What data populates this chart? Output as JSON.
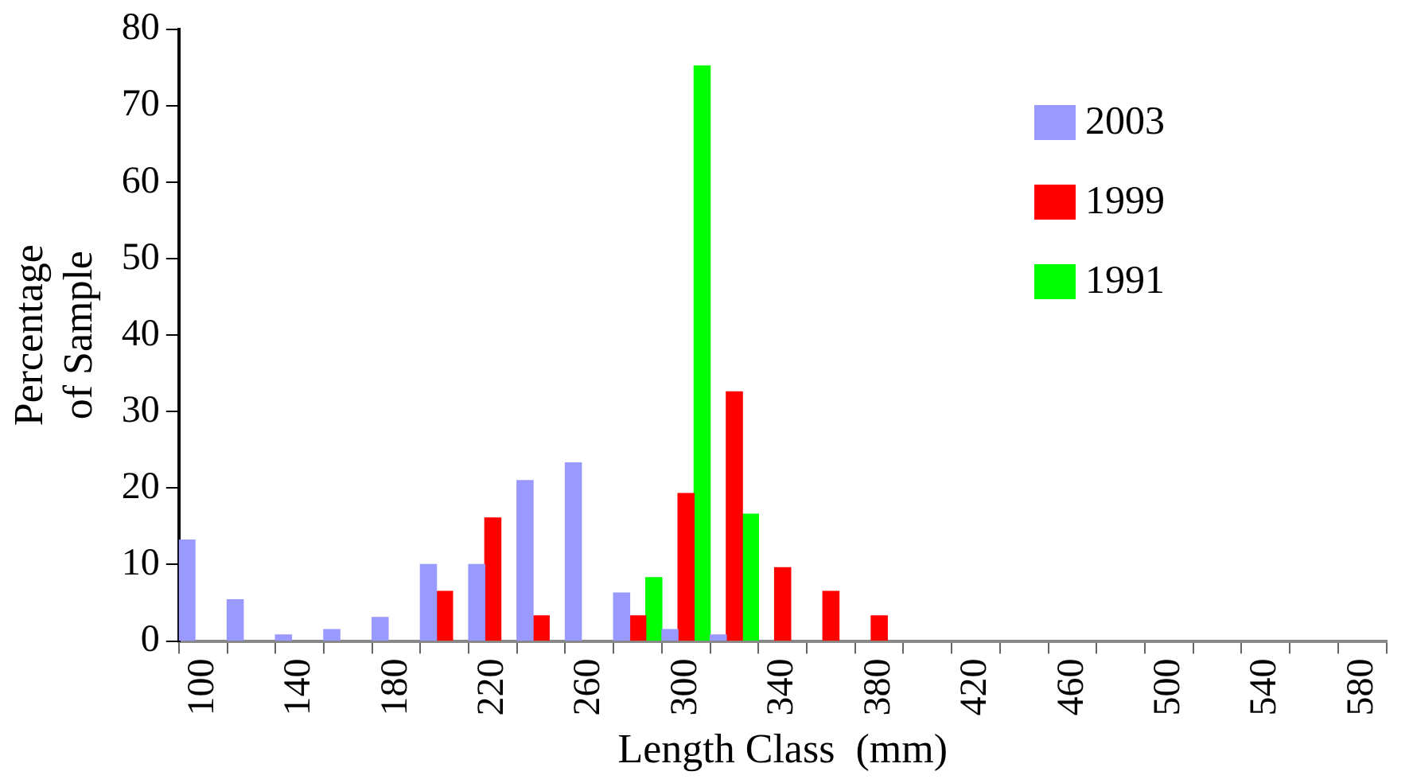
{
  "chart_data": {
    "type": "bar",
    "xlabel": "Length Class  (mm)",
    "ylabel": [
      "Percentage",
      "of Sample"
    ],
    "categories": [
      "100",
      null,
      "140",
      null,
      "180",
      null,
      "220",
      null,
      "260",
      null,
      "300",
      null,
      "340",
      null,
      "380",
      null,
      "420",
      null,
      "460",
      null,
      "500",
      null,
      "540",
      null,
      "580"
    ],
    "series": [
      {
        "name": "2003",
        "color": "#9999ff",
        "values": [
          13.2,
          5.4,
          0.8,
          1.5,
          3.1,
          10.0,
          10.0,
          21.0,
          23.3,
          6.3,
          1.5,
          0.8,
          null,
          null,
          null,
          null,
          null,
          null,
          null,
          null,
          null,
          null,
          null,
          null,
          null
        ]
      },
      {
        "name": "1999",
        "color": "#ff0000",
        "values": [
          null,
          null,
          null,
          null,
          null,
          6.5,
          16.1,
          3.3,
          null,
          3.3,
          19.3,
          32.6,
          9.6,
          6.5,
          3.3,
          null,
          null,
          null,
          null,
          null,
          null,
          null,
          null,
          null,
          null
        ]
      },
      {
        "name": "1991",
        "color": "#00ff00",
        "values": [
          null,
          null,
          null,
          null,
          null,
          null,
          null,
          null,
          null,
          8.3,
          75.2,
          16.6,
          null,
          null,
          null,
          null,
          null,
          null,
          null,
          null,
          null,
          null,
          null,
          null,
          null
        ]
      }
    ],
    "ylim": [
      0,
      80
    ],
    "yticks": [
      0,
      10,
      20,
      30,
      40,
      50,
      60,
      70,
      80
    ],
    "grid": false,
    "legend": "top right"
  }
}
